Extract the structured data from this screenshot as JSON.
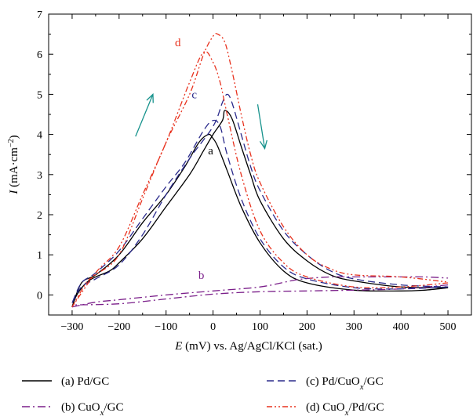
{
  "chart_data": {
    "type": "line",
    "xlabel": {
      "var": "E",
      "rest": " (mV) vs. Ag/AgCl/KCl (sat.)"
    },
    "ylabel": {
      "var": "I",
      "rest": " (mA·cm",
      "sup": "−2",
      "close": ")"
    },
    "xlim": [
      -350,
      550
    ],
    "ylim": [
      -0.5,
      7
    ],
    "xticks": [
      -300,
      -200,
      -100,
      0,
      100,
      200,
      300,
      400,
      500
    ],
    "xtick_labels": [
      "−300",
      "−200",
      "−100",
      "0",
      "100",
      "200",
      "300",
      "400",
      "500"
    ],
    "yticks": [
      0,
      1,
      2,
      3,
      4,
      5,
      6,
      7
    ],
    "ytick_labels": [
      "0",
      "1",
      "2",
      "3",
      "4",
      "5",
      "6",
      "7"
    ],
    "grid": false,
    "legend_position": "bottom",
    "series": [
      {
        "key": "a",
        "legend": {
          "pre": "(a) Pd/GC",
          "sub": "",
          "post": ""
        },
        "color": "#000000",
        "dash": "solid",
        "forward": [
          [
            -300,
            -0.3
          ],
          [
            -290,
            0.0
          ],
          [
            -270,
            0.3
          ],
          [
            -250,
            0.45
          ],
          [
            -220,
            0.6
          ],
          [
            -200,
            0.8
          ],
          [
            -150,
            1.4
          ],
          [
            -100,
            2.2
          ],
          [
            -50,
            3.0
          ],
          [
            -20,
            3.6
          ],
          [
            0,
            4.0
          ],
          [
            20,
            4.35
          ],
          [
            25,
            4.6
          ],
          [
            40,
            4.4
          ],
          [
            60,
            3.7
          ],
          [
            80,
            3.0
          ],
          [
            100,
            2.35
          ],
          [
            150,
            1.4
          ],
          [
            200,
            0.85
          ],
          [
            250,
            0.5
          ],
          [
            300,
            0.35
          ],
          [
            400,
            0.2
          ],
          [
            500,
            0.18
          ]
        ],
        "reverse": [
          [
            500,
            0.18
          ],
          [
            450,
            0.12
          ],
          [
            400,
            0.1
          ],
          [
            300,
            0.12
          ],
          [
            200,
            0.3
          ],
          [
            150,
            0.6
          ],
          [
            100,
            1.3
          ],
          [
            60,
            2.2
          ],
          [
            30,
            3.1
          ],
          [
            10,
            3.7
          ],
          [
            0,
            3.9
          ],
          [
            -10,
            4.0
          ],
          [
            -30,
            3.8
          ],
          [
            -60,
            3.2
          ],
          [
            -100,
            2.5
          ],
          [
            -150,
            1.8
          ],
          [
            -200,
            1.0
          ],
          [
            -250,
            0.5
          ],
          [
            -280,
            0.3
          ],
          [
            -300,
            -0.3
          ]
        ]
      },
      {
        "key": "b",
        "legend": {
          "pre": "(b) CuO",
          "sub": "x",
          "post": "/GC"
        },
        "color": "#7b1f8a",
        "dash": "10 4 2 4",
        "forward": [
          [
            -300,
            -0.3
          ],
          [
            -250,
            -0.18
          ],
          [
            -200,
            -0.12
          ],
          [
            -100,
            0.0
          ],
          [
            0,
            0.1
          ],
          [
            100,
            0.2
          ],
          [
            180,
            0.38
          ],
          [
            250,
            0.45
          ],
          [
            300,
            0.45
          ],
          [
            400,
            0.45
          ],
          [
            450,
            0.45
          ],
          [
            500,
            0.42
          ]
        ],
        "reverse": [
          [
            500,
            0.25
          ],
          [
            400,
            0.15
          ],
          [
            300,
            0.12
          ],
          [
            200,
            0.1
          ],
          [
            100,
            0.08
          ],
          [
            0,
            0.02
          ],
          [
            -100,
            -0.1
          ],
          [
            -200,
            -0.22
          ],
          [
            -300,
            -0.25
          ]
        ]
      },
      {
        "key": "c",
        "legend": {
          "pre": "(c) Pd/CuO",
          "sub": "x",
          "post": "/GC"
        },
        "color": "#2b2b8c",
        "dash": "9 5",
        "forward": [
          [
            -300,
            -0.2
          ],
          [
            -280,
            0.2
          ],
          [
            -250,
            0.4
          ],
          [
            -200,
            0.75
          ],
          [
            -150,
            1.5
          ],
          [
            -100,
            2.5
          ],
          [
            -50,
            3.4
          ],
          [
            0,
            4.2
          ],
          [
            20,
            4.8
          ],
          [
            30,
            5.0
          ],
          [
            40,
            4.8
          ],
          [
            60,
            4.0
          ],
          [
            80,
            3.2
          ],
          [
            100,
            2.6
          ],
          [
            150,
            1.6
          ],
          [
            200,
            1.0
          ],
          [
            250,
            0.6
          ],
          [
            300,
            0.4
          ],
          [
            400,
            0.25
          ],
          [
            500,
            0.2
          ]
        ],
        "reverse": [
          [
            500,
            0.2
          ],
          [
            400,
            0.15
          ],
          [
            300,
            0.18
          ],
          [
            200,
            0.4
          ],
          [
            150,
            0.7
          ],
          [
            100,
            1.4
          ],
          [
            60,
            2.4
          ],
          [
            30,
            3.5
          ],
          [
            15,
            4.2
          ],
          [
            0,
            4.35
          ],
          [
            -20,
            4.1
          ],
          [
            -60,
            3.3
          ],
          [
            -100,
            2.7
          ],
          [
            -150,
            1.9
          ],
          [
            -200,
            1.1
          ],
          [
            -250,
            0.55
          ],
          [
            -280,
            0.3
          ],
          [
            -300,
            -0.2
          ]
        ]
      },
      {
        "key": "d",
        "legend": {
          "pre": "(d) CuO",
          "sub": "x",
          "post": "/Pd/GC"
        },
        "color": "#e8321e",
        "dash": "7 3 2 3 2 3",
        "forward": [
          [
            -300,
            -0.3
          ],
          [
            -270,
            0.3
          ],
          [
            -250,
            0.5
          ],
          [
            -200,
            1.0
          ],
          [
            -150,
            2.4
          ],
          [
            -100,
            3.8
          ],
          [
            -50,
            5.0
          ],
          [
            -20,
            6.0
          ],
          [
            0,
            6.45
          ],
          [
            10,
            6.5
          ],
          [
            25,
            6.3
          ],
          [
            40,
            5.6
          ],
          [
            60,
            4.5
          ],
          [
            80,
            3.5
          ],
          [
            100,
            2.8
          ],
          [
            150,
            1.7
          ],
          [
            200,
            1.0
          ],
          [
            250,
            0.65
          ],
          [
            300,
            0.5
          ],
          [
            400,
            0.45
          ],
          [
            500,
            0.32
          ]
        ],
        "reverse": [
          [
            500,
            0.3
          ],
          [
            400,
            0.2
          ],
          [
            300,
            0.2
          ],
          [
            200,
            0.45
          ],
          [
            150,
            0.8
          ],
          [
            100,
            1.6
          ],
          [
            60,
            3.0
          ],
          [
            30,
            4.5
          ],
          [
            15,
            5.3
          ],
          [
            0,
            5.8
          ],
          [
            -20,
            6.05
          ],
          [
            -50,
            5.3
          ],
          [
            -100,
            3.8
          ],
          [
            -150,
            2.5
          ],
          [
            -200,
            1.2
          ],
          [
            -250,
            0.55
          ],
          [
            -300,
            -0.3
          ]
        ]
      }
    ],
    "annotations": [
      {
        "text": "a",
        "x": -5,
        "y": 3.5,
        "color": "#000000"
      },
      {
        "text": "b",
        "x": -25,
        "y": 0.4,
        "color": "#7b1f8a"
      },
      {
        "text": "c",
        "x": -40,
        "y": 4.9,
        "color": "#2b2b8c"
      },
      {
        "text": "d",
        "x": -75,
        "y": 6.2,
        "color": "#e8321e"
      }
    ],
    "arrows": [
      {
        "direction": "up",
        "from": [
          -165,
          3.95
        ],
        "to": [
          -128,
          5.0
        ],
        "color": "#16928c"
      },
      {
        "direction": "down",
        "from": [
          95,
          4.75
        ],
        "to": [
          110,
          3.65
        ],
        "color": "#16928c"
      }
    ]
  }
}
